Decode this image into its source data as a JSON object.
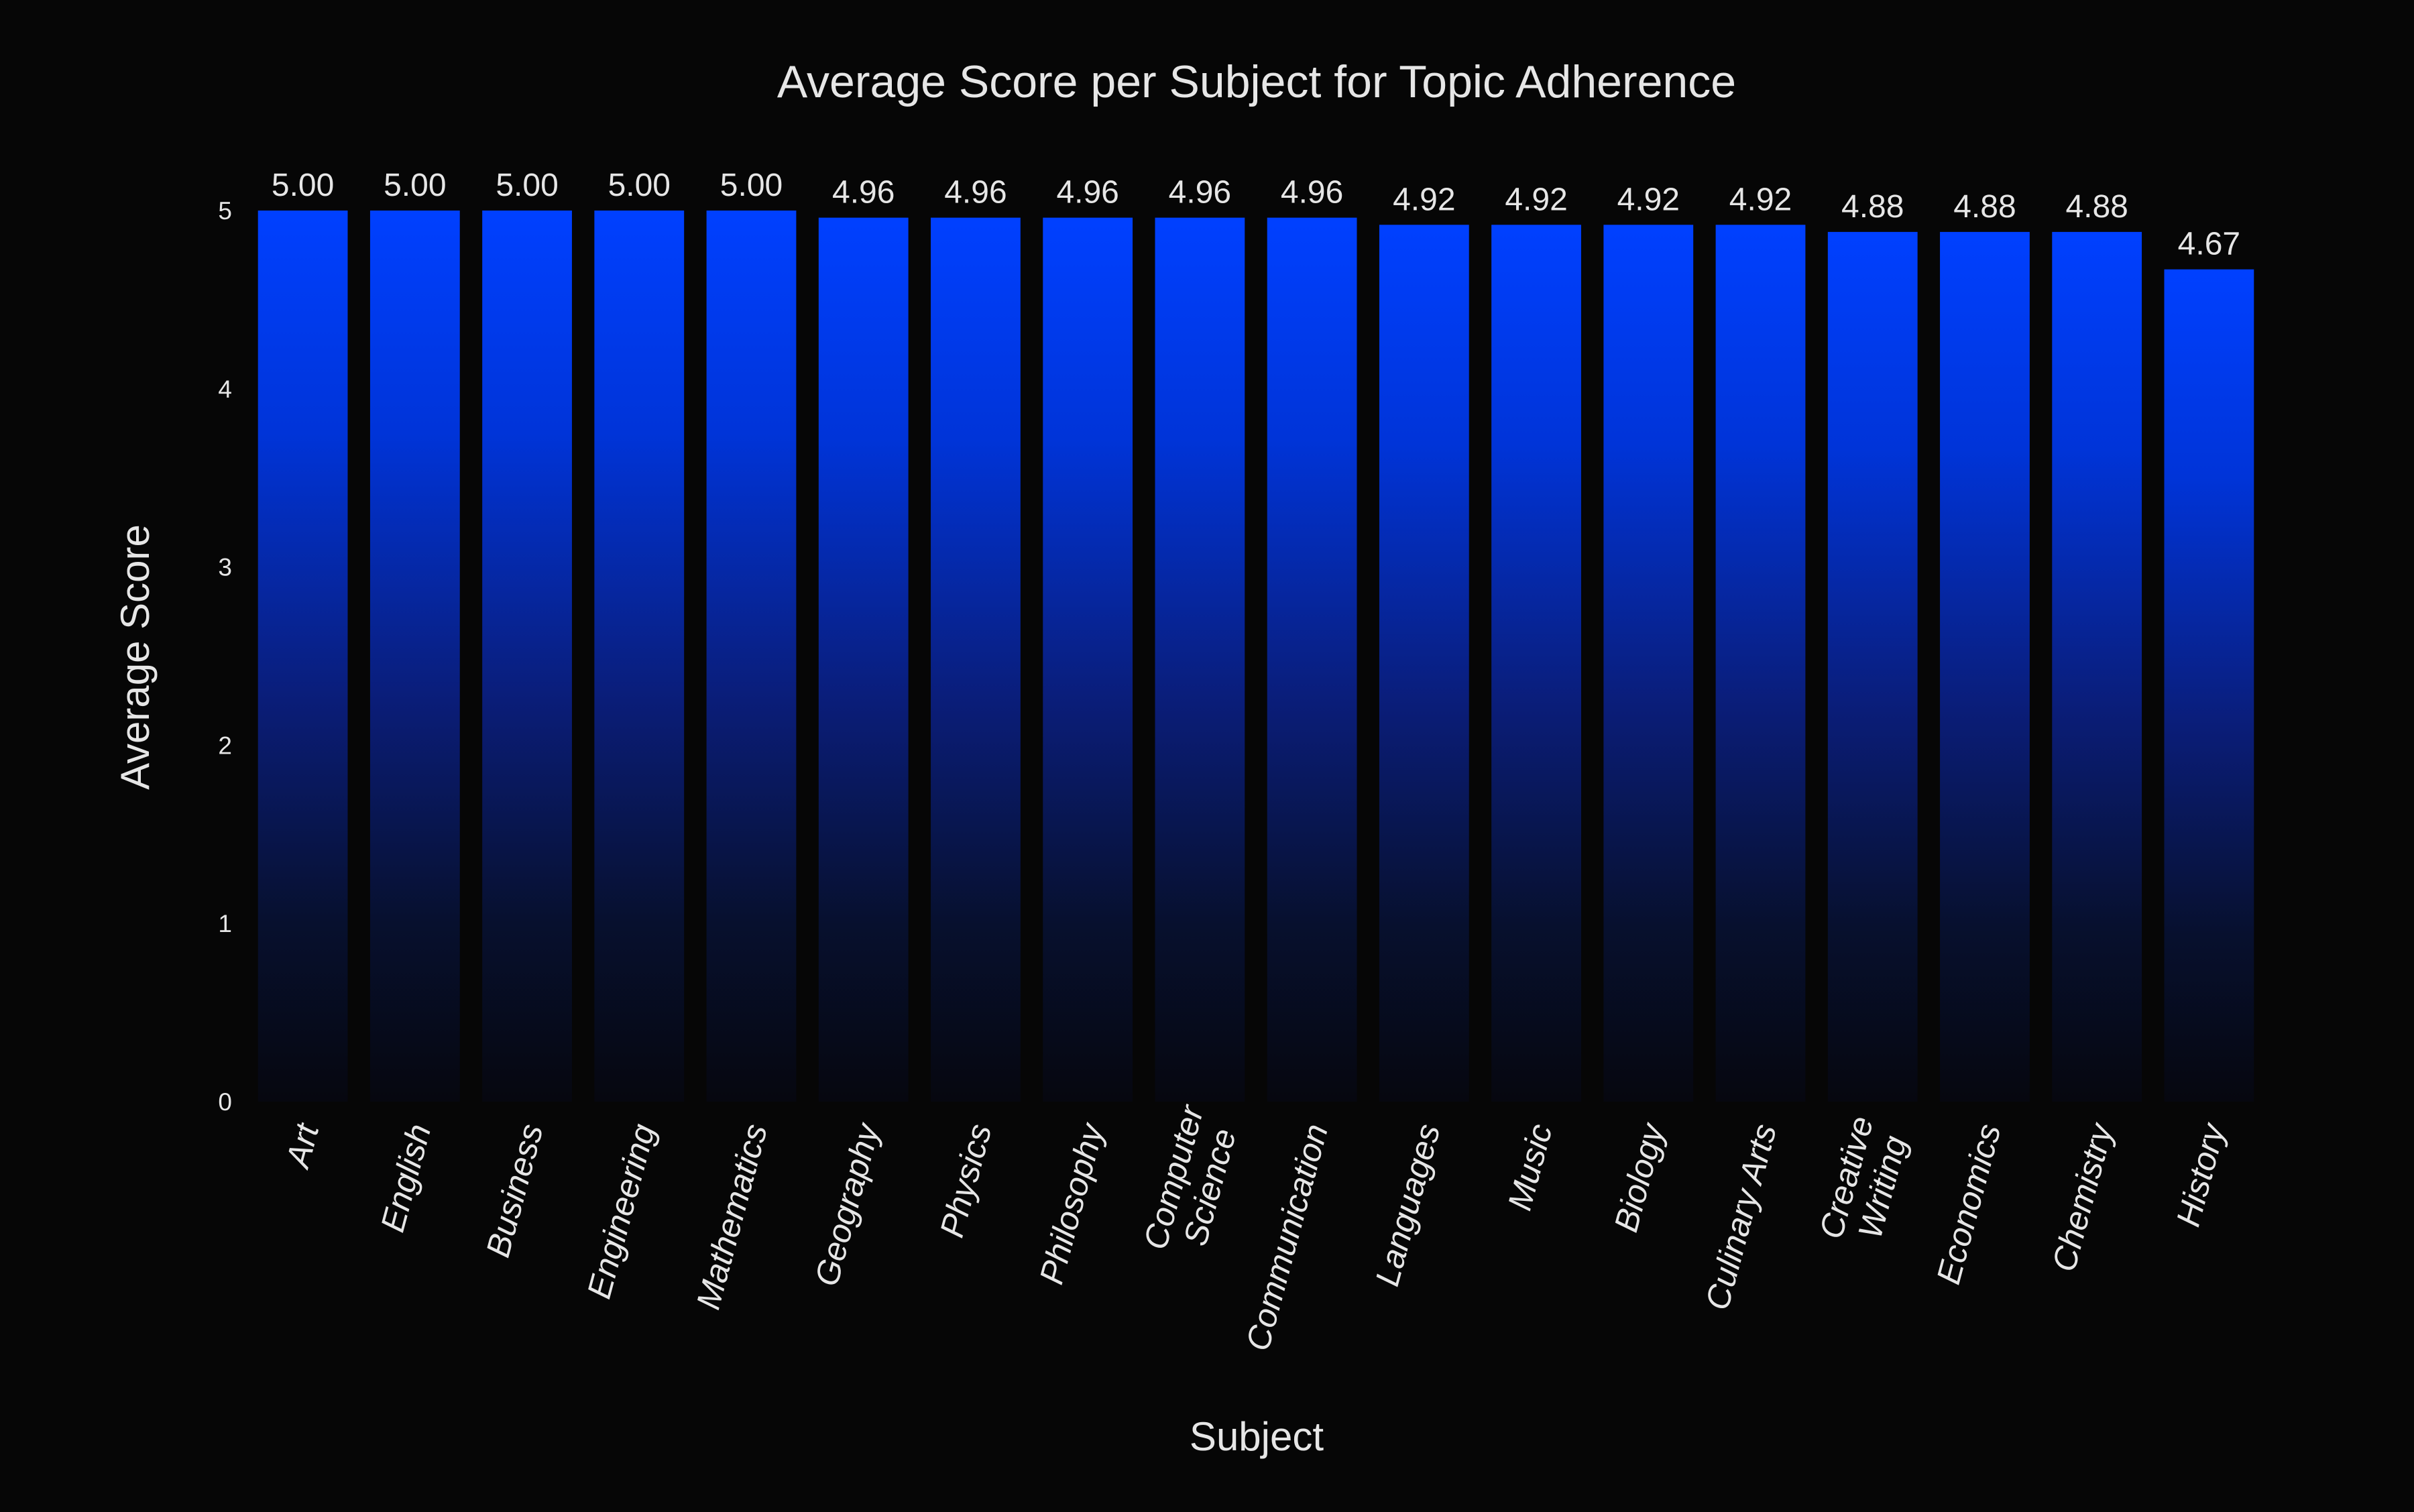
{
  "chart_data": {
    "type": "bar",
    "title": "Average Score per Subject for Topic Adherence",
    "xlabel": "Subject",
    "ylabel": "Average Score",
    "categories": [
      "Art",
      "English",
      "Business",
      "Engineering",
      "Mathematics",
      "Geography",
      "Physics",
      "Philosophy",
      "Computer\nScience",
      "Communication",
      "Languages",
      "Music",
      "Biology",
      "Culinary Arts",
      "Creative\nWriting",
      "Economics",
      "Chemistry",
      "History"
    ],
    "values": [
      5.0,
      5.0,
      5.0,
      5.0,
      5.0,
      4.96,
      4.96,
      4.96,
      4.96,
      4.96,
      4.92,
      4.92,
      4.92,
      4.92,
      4.88,
      4.88,
      4.88,
      4.67
    ],
    "value_labels": [
      "5.00",
      "5.00",
      "5.00",
      "5.00",
      "5.00",
      "4.96",
      "4.96",
      "4.96",
      "4.96",
      "4.96",
      "4.92",
      "4.92",
      "4.92",
      "4.92",
      "4.88",
      "4.88",
      "4.88",
      "4.67"
    ],
    "ylim": [
      0,
      5
    ],
    "yticks": [
      "0",
      "1",
      "2",
      "3",
      "4",
      "5"
    ],
    "grid": false,
    "legend": "none",
    "colors": {
      "background": "#060606",
      "bar_top": "#0040ff",
      "bar_bottom": "#06070f",
      "text": "#e6e6e6"
    }
  }
}
